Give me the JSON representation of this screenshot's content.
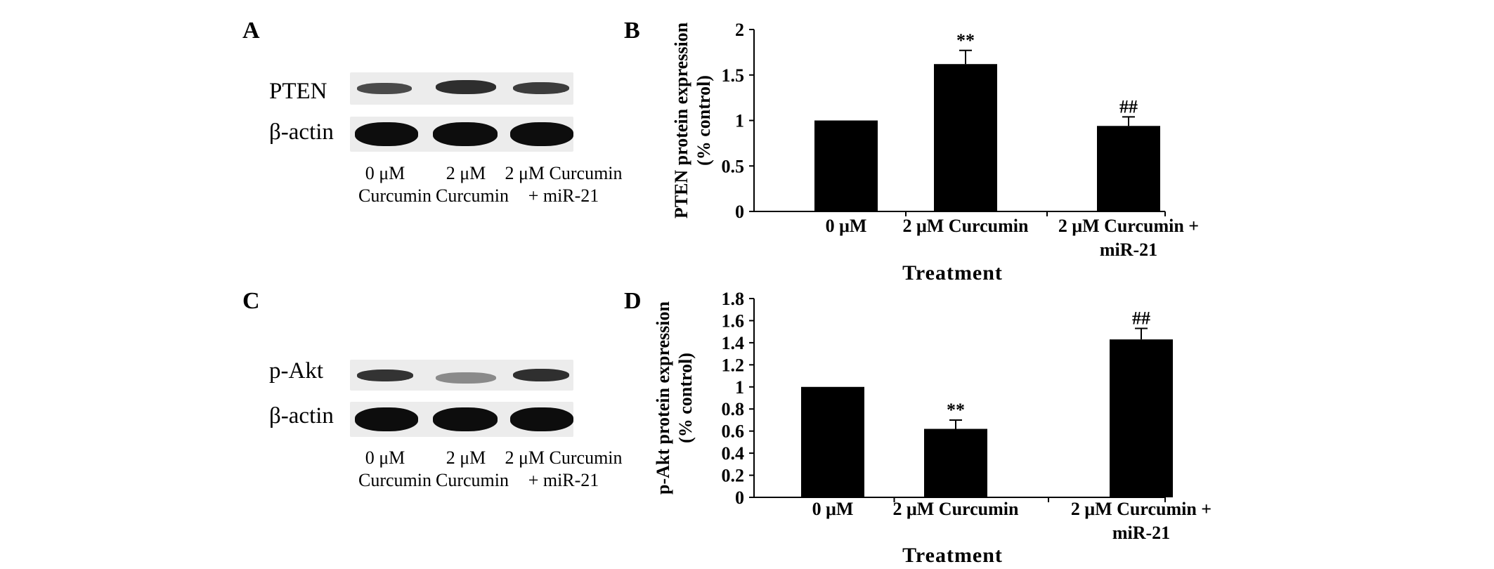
{
  "panels": {
    "A": {
      "letter": "A",
      "blot_rows": [
        "PTEN",
        "β-actin"
      ],
      "lanes": [
        [
          "0 μM",
          "Curcumin"
        ],
        [
          "2 μM",
          "Curcumin"
        ],
        [
          "2 μM Curcumin",
          "+ miR-21"
        ]
      ]
    },
    "B": {
      "letter": "B"
    },
    "C": {
      "letter": "C",
      "blot_rows": [
        "p-Akt",
        "β-actin"
      ],
      "lanes": [
        [
          "0 μM",
          "Curcumin"
        ],
        [
          "2 μM",
          "Curcumin"
        ],
        [
          "2 μM Curcumin",
          "+ miR-21"
        ]
      ]
    },
    "D": {
      "letter": "D"
    }
  },
  "chart_data": [
    {
      "panel": "B",
      "type": "bar",
      "categories": [
        [
          "0 μM"
        ],
        [
          "2 μM Curcumin"
        ],
        [
          "2 μM Curcumin +",
          "miR-21"
        ]
      ],
      "values": [
        1.0,
        1.62,
        0.94
      ],
      "error": [
        0.0,
        0.15,
        0.1
      ],
      "annotations": [
        "",
        "**",
        "##"
      ],
      "ylabel": [
        "PTEN protein expression",
        "(% control)"
      ],
      "xlabel": "Treatment",
      "ylim": [
        0,
        2
      ],
      "yticks": [
        "0",
        "0.5",
        "1",
        "1.5",
        "2"
      ],
      "ytick_values": [
        0,
        0.5,
        1,
        1.5,
        2
      ],
      "bar_color": "#000000",
      "grid": false
    },
    {
      "panel": "D",
      "type": "bar",
      "categories": [
        [
          "0 μM"
        ],
        [
          "2 μM Curcumin"
        ],
        [
          "2 μM Curcumin +",
          "miR-21"
        ]
      ],
      "values": [
        1.0,
        0.62,
        1.43
      ],
      "error": [
        0.0,
        0.08,
        0.1
      ],
      "annotations": [
        "",
        "**",
        "##"
      ],
      "ylabel": [
        "p-Akt protein expression",
        "(% control)"
      ],
      "xlabel": "Treatment",
      "ylim": [
        0,
        1.8
      ],
      "yticks": [
        "0",
        "0.2",
        "0.4",
        "0.6",
        "0.8",
        "1",
        "1.2",
        "1.4",
        "1.6",
        "1.8"
      ],
      "ytick_values": [
        0,
        0.2,
        0.4,
        0.6,
        0.8,
        1,
        1.2,
        1.4,
        1.6,
        1.8
      ],
      "bar_color": "#000000",
      "grid": false
    }
  ]
}
